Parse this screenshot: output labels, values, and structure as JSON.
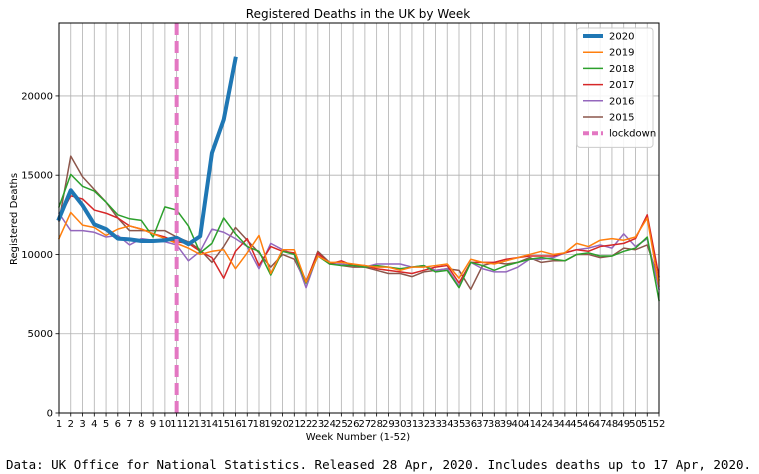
{
  "chart_data": {
    "type": "line",
    "title": "Registered Deaths in the UK by Week",
    "xlabel": "Week Number (1-52)",
    "ylabel": "Registered Deaths",
    "xlim": [
      1,
      52
    ],
    "ylim": [
      0,
      24600
    ],
    "x_ticks": [
      1,
      2,
      3,
      4,
      5,
      6,
      7,
      8,
      9,
      10,
      11,
      12,
      13,
      14,
      15,
      16,
      17,
      18,
      19,
      20,
      21,
      22,
      23,
      24,
      25,
      26,
      27,
      28,
      29,
      30,
      31,
      32,
      33,
      34,
      35,
      36,
      37,
      38,
      39,
      40,
      41,
      42,
      43,
      44,
      45,
      46,
      47,
      48,
      49,
      50,
      51,
      52
    ],
    "y_ticks": [
      0,
      5000,
      10000,
      15000,
      20000
    ],
    "grid": true,
    "legend_position": "top-right",
    "series": [
      {
        "name": "2020",
        "color": "#1f77b4",
        "width": 4,
        "values": [
          12250,
          14050,
          13100,
          11900,
          11600,
          11000,
          10950,
          10850,
          10850,
          10900,
          11050,
          10650,
          11150,
          16400,
          18500,
          22350
        ]
      },
      {
        "name": "2019",
        "color": "#ff7f0e",
        "width": 1.5,
        "values": [
          11000,
          12650,
          11850,
          11700,
          11200,
          11600,
          11800,
          11600,
          11300,
          11000,
          10700,
          10400,
          10000,
          10200,
          10300,
          9100,
          10100,
          11200,
          8800,
          10300,
          10300,
          8250,
          9900,
          9500,
          9500,
          9400,
          9300,
          9200,
          9200,
          9000,
          9200,
          9200,
          9300,
          9400,
          8500,
          9700,
          9500,
          9400,
          9600,
          9800,
          10000,
          10200,
          10000,
          10100,
          10700,
          10500,
          10900,
          11000,
          10900,
          11100,
          12300,
          8000
        ]
      },
      {
        "name": "2018",
        "color": "#2ca02c",
        "width": 1.5,
        "values": [
          13000,
          15050,
          14300,
          14000,
          13300,
          12500,
          12250,
          12150,
          11100,
          13000,
          12800,
          11800,
          10100,
          10700,
          12300,
          11300,
          10500,
          10200,
          8700,
          10200,
          10000,
          8200,
          9900,
          9400,
          9300,
          9300,
          9200,
          9300,
          9200,
          9100,
          9200,
          9300,
          8900,
          9000,
          7900,
          9500,
          9300,
          9000,
          9300,
          9500,
          9700,
          9800,
          9700,
          9600,
          10000,
          10100,
          9900,
          9900,
          10200,
          10400,
          11100,
          7100
        ]
      },
      {
        "name": "2017",
        "color": "#d62728",
        "width": 1.5,
        "values": [
          12300,
          13700,
          13500,
          12800,
          12600,
          12300,
          11800,
          11600,
          11300,
          11100,
          10800,
          10700,
          10200,
          9800,
          8500,
          10200,
          11000,
          9300,
          10500,
          10200,
          10100,
          8300,
          10100,
          9400,
          9600,
          9300,
          9300,
          9100,
          9000,
          8900,
          8800,
          9000,
          9200,
          9300,
          8200,
          9500,
          9500,
          9500,
          9700,
          9800,
          9900,
          9900,
          9900,
          10100,
          10300,
          10200,
          10500,
          10600,
          10700,
          11000,
          12500,
          8600
        ]
      },
      {
        "name": "2016",
        "color": "#9467bd",
        "width": 1.5,
        "values": [
          12600,
          11500,
          11500,
          11400,
          11100,
          11200,
          10600,
          11000,
          10900,
          10800,
          10600,
          9600,
          10200,
          11600,
          11400,
          11000,
          10500,
          9100,
          10700,
          10300,
          10000,
          7900,
          10000,
          9400,
          9400,
          9300,
          9200,
          9400,
          9400,
          9400,
          9200,
          9300,
          9000,
          9100,
          8000,
          9500,
          9100,
          8900,
          8900,
          9200,
          9700,
          9700,
          9800,
          10100,
          10300,
          10400,
          10600,
          10400,
          11300,
          10500,
          11000,
          7800
        ]
      },
      {
        "name": "2015",
        "color": "#8c564b",
        "width": 1.5,
        "values": [
          12100,
          16200,
          14900,
          14100,
          13300,
          12300,
          11500,
          11500,
          11500,
          11500,
          11100,
          10800,
          10300,
          9500,
          10500,
          11700,
          10900,
          10100,
          9200,
          10000,
          9700,
          8200,
          10200,
          9500,
          9300,
          9200,
          9200,
          9000,
          8800,
          8800,
          8600,
          8900,
          9000,
          9100,
          9000,
          7800,
          9300,
          9500,
          9400,
          9500,
          9800,
          9500,
          9600,
          9600,
          10000,
          10000,
          9800,
          9900,
          10400,
          10300,
          10600,
          8400
        ]
      }
    ],
    "annotation": {
      "name": "lockdown",
      "x": 11,
      "color": "#e377c2"
    }
  },
  "caption": "Data: UK Office for National Statistics. Released 28 Apr, 2020. Includes deaths up to 17 Apr, 2020."
}
